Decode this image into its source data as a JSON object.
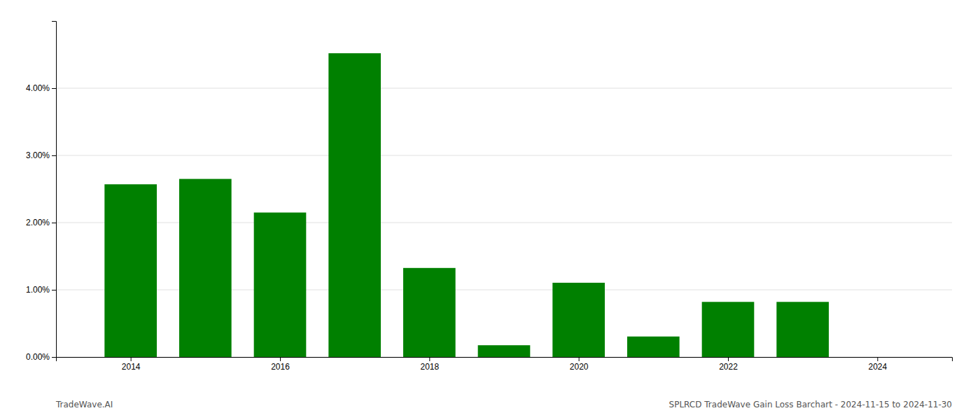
{
  "chart_data": {
    "type": "bar",
    "title": "SPLRCD TradeWave Gain Loss Barchart - 2024-11-15 to 2024-11-30",
    "annotations": [
      "TradeWave.AI"
    ],
    "x": [
      2014,
      2015,
      2016,
      2017,
      2018,
      2019,
      2020,
      2021,
      2022,
      2023
    ],
    "values": [
      0.0257,
      0.0265,
      0.0215,
      0.0452,
      0.01325,
      0.00175,
      0.01105,
      0.00305,
      0.0082,
      0.0082
    ],
    "color": "#008000",
    "xlim": [
      2013.0,
      2025.0
    ],
    "xticks": [
      2014,
      2016,
      2018,
      2020,
      2022,
      2024
    ],
    "ylim": [
      0,
      0.05
    ],
    "yticks": [
      {
        "value": 0.0,
        "label": "0.00%"
      },
      {
        "value": 0.01,
        "label": "1.00%"
      },
      {
        "value": 0.02,
        "label": "2.00%"
      },
      {
        "value": 0.03,
        "label": "3.00%"
      },
      {
        "value": 0.04,
        "label": "4.00%"
      }
    ],
    "grid": "y"
  }
}
